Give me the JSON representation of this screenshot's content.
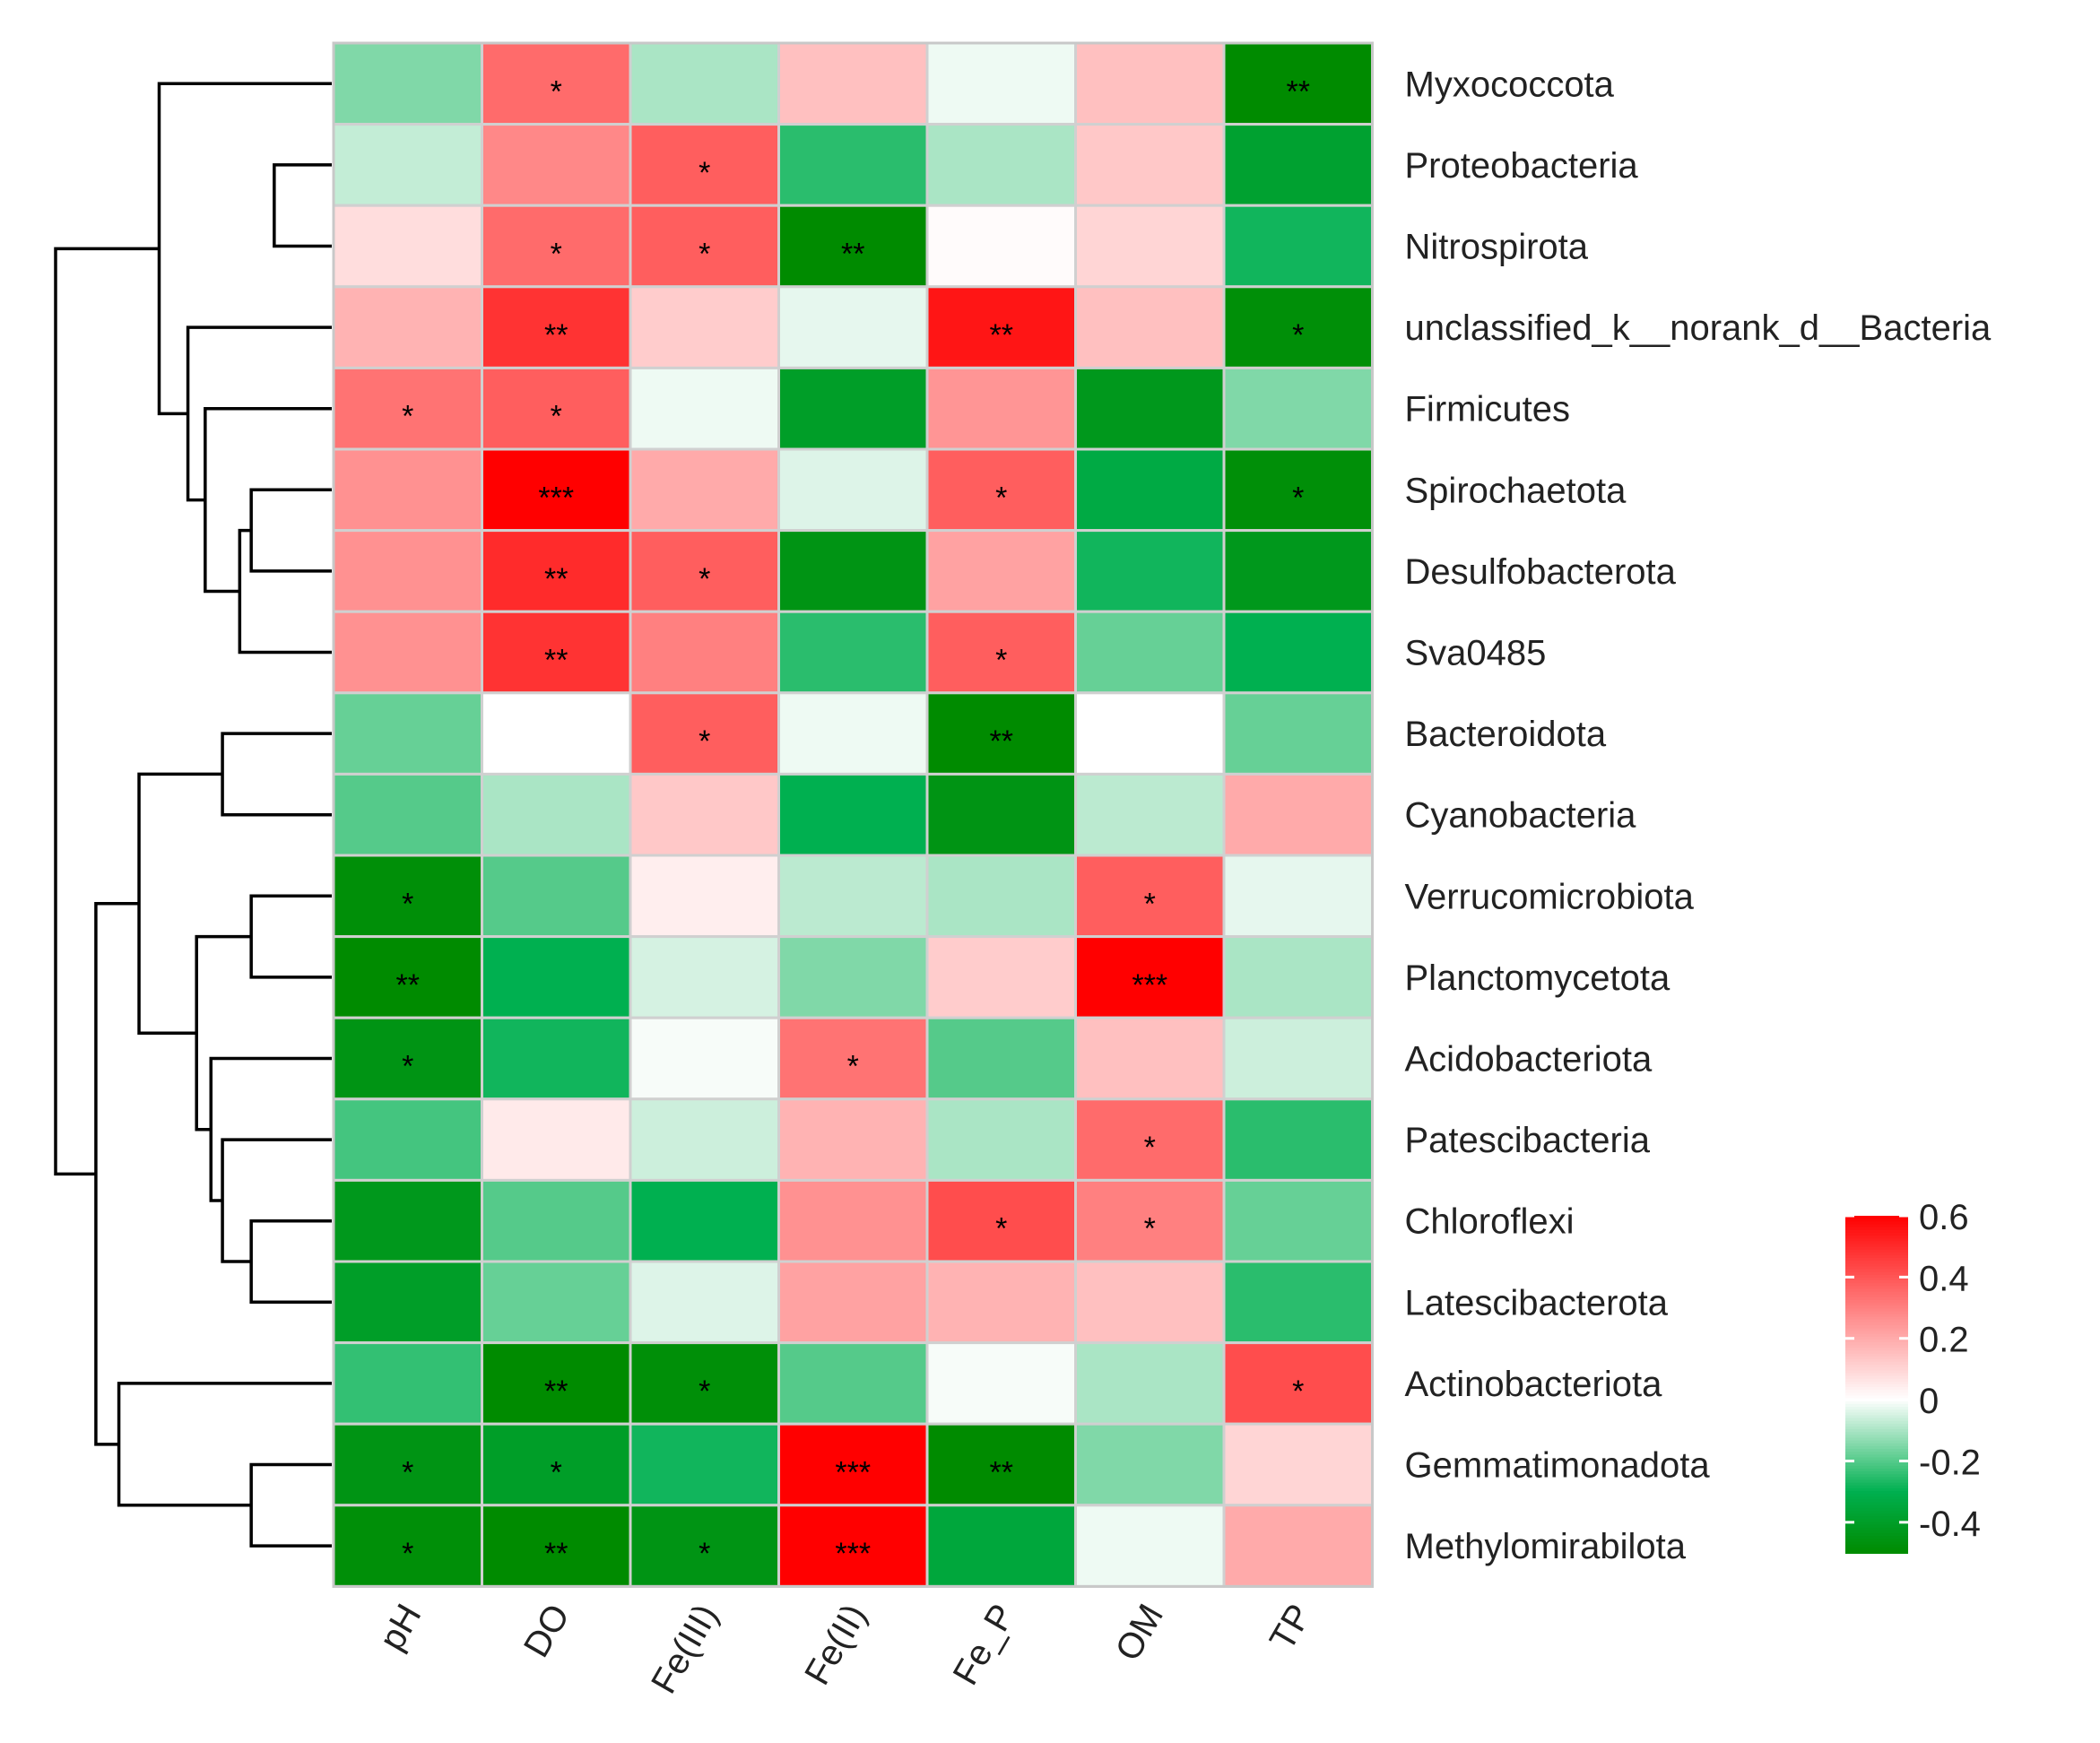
{
  "chart_data": {
    "type": "heatmap",
    "title": "",
    "columns": [
      "pH",
      "DO",
      "Fe(III)",
      "Fe(II)",
      "Fe_P",
      "OM",
      "TP"
    ],
    "rows": [
      "Myxococcota",
      "Proteobacteria",
      "Nitrospirota",
      "unclassified_k__norank_d__Bacteria",
      "Firmicutes",
      "Spirochaetota",
      "Desulfobacterota",
      "Sva0485",
      "Bacteroidota",
      "Cyanobacteria",
      "Verrucomicrobiota",
      "Planctomycetota",
      "Acidobacteriota",
      "Patescibacteria",
      "Chloroflexi",
      "Latescibacterota",
      "Actinobacteriota",
      "Gemmatimonadota",
      "Methylomirabilota"
    ],
    "values": [
      [
        -0.15,
        0.35,
        -0.1,
        0.15,
        -0.02,
        0.15,
        -0.5
      ],
      [
        -0.07,
        0.28,
        0.38,
        -0.25,
        -0.1,
        0.13,
        -0.38
      ],
      [
        0.08,
        0.35,
        0.38,
        -0.5,
        0.01,
        0.1,
        -0.28
      ],
      [
        0.18,
        0.48,
        0.12,
        -0.03,
        0.55,
        0.15,
        -0.48
      ],
      [
        0.33,
        0.38,
        -0.02,
        -0.4,
        0.25,
        -0.43,
        -0.15
      ],
      [
        0.26,
        0.6,
        0.2,
        -0.04,
        0.38,
        -0.33,
        -0.48
      ],
      [
        0.26,
        0.5,
        0.38,
        -0.45,
        0.22,
        -0.28,
        -0.43
      ],
      [
        0.26,
        0.48,
        0.3,
        -0.25,
        0.38,
        -0.18,
        -0.3
      ],
      [
        -0.18,
        0.0,
        0.38,
        -0.02,
        -0.5,
        0.0,
        -0.18
      ],
      [
        -0.2,
        -0.1,
        0.13,
        -0.3,
        -0.45,
        -0.08,
        0.2
      ],
      [
        -0.48,
        -0.2,
        0.04,
        -0.08,
        -0.1,
        0.38,
        -0.03
      ],
      [
        -0.5,
        -0.3,
        -0.05,
        -0.15,
        0.12,
        0.6,
        -0.1
      ],
      [
        -0.45,
        -0.28,
        -0.01,
        0.33,
        -0.2,
        0.15,
        -0.06
      ],
      [
        -0.22,
        0.05,
        -0.06,
        0.18,
        -0.1,
        0.35,
        -0.25
      ],
      [
        -0.43,
        -0.2,
        -0.3,
        0.26,
        0.42,
        0.3,
        -0.18
      ],
      [
        -0.4,
        -0.18,
        -0.04,
        0.22,
        0.18,
        0.15,
        -0.25
      ],
      [
        -0.24,
        -0.5,
        -0.48,
        -0.2,
        -0.01,
        -0.1,
        0.42
      ],
      [
        -0.45,
        -0.4,
        -0.28,
        0.6,
        -0.5,
        -0.15,
        0.1
      ],
      [
        -0.48,
        -0.5,
        -0.45,
        0.6,
        -0.35,
        -0.02,
        0.2
      ]
    ],
    "significance": [
      [
        "",
        "*",
        "",
        "",
        "",
        "",
        "**"
      ],
      [
        "",
        "",
        "*",
        "",
        "",
        "",
        ""
      ],
      [
        "",
        "*",
        "*",
        "**",
        "",
        "",
        ""
      ],
      [
        "",
        "**",
        "",
        "",
        "**",
        "",
        "*"
      ],
      [
        "*",
        "*",
        "",
        "",
        "",
        "",
        ""
      ],
      [
        "",
        "***",
        "",
        "",
        "*",
        "",
        "*"
      ],
      [
        "",
        "**",
        "*",
        "",
        "",
        "",
        ""
      ],
      [
        "",
        "**",
        "",
        "",
        "*",
        "",
        ""
      ],
      [
        "",
        "",
        "*",
        "",
        "**",
        "",
        ""
      ],
      [
        "",
        "",
        "",
        "",
        "",
        "",
        ""
      ],
      [
        "*",
        "",
        "",
        "",
        "",
        "*",
        ""
      ],
      [
        "**",
        "",
        "",
        "",
        "",
        "***",
        ""
      ],
      [
        "*",
        "",
        "",
        "*",
        "",
        "",
        ""
      ],
      [
        "",
        "",
        "",
        "",
        "",
        "*",
        ""
      ],
      [
        "",
        "",
        "",
        "",
        "*",
        "*",
        ""
      ],
      [
        "",
        "",
        "",
        "",
        "",
        "",
        ""
      ],
      [
        "",
        "**",
        "*",
        "",
        "",
        "",
        "*"
      ],
      [
        "*",
        "*",
        "",
        "***",
        "**",
        "",
        ""
      ],
      [
        "*",
        "**",
        "*",
        "***",
        "",
        "",
        ""
      ]
    ],
    "colorscale": {
      "low": "#008b00",
      "low_mid": "#00b050",
      "mid": "#ffffff",
      "high_mid": "#ff8080",
      "high": "#ff0000",
      "min": -0.5,
      "max": 0.6
    },
    "legend": {
      "ticks": [
        0.6,
        0.4,
        0.2,
        0,
        -0.2,
        -0.4
      ],
      "tick_labels": [
        "0.6",
        "0.4",
        "0.2",
        "0",
        "-0.2",
        "-0.4"
      ],
      "placement": "bottom-right"
    },
    "dendrogram": {
      "side": "left",
      "merges": [
        [
          1,
          2,
          1
        ],
        [
          5,
          6,
          1.4
        ],
        [
          -2,
          7,
          1.6
        ],
        [
          -3,
          4,
          2.2
        ],
        [
          3,
          -4,
          2.5
        ],
        [
          0,
          -5,
          3.0
        ],
        [
          10,
          11,
          1.4
        ],
        [
          14,
          15,
          1.4
        ],
        [
          13,
          -8,
          1.9
        ],
        [
          12,
          -9,
          2.1
        ],
        [
          -7,
          -10,
          2.35
        ],
        [
          8,
          9,
          1.9
        ],
        [
          -12,
          -11,
          3.35
        ],
        [
          17,
          18,
          1.4
        ],
        [
          16,
          -14,
          3.7
        ],
        [
          -13,
          -15,
          4.1
        ],
        [
          -6,
          -16,
          4.8
        ]
      ]
    }
  }
}
